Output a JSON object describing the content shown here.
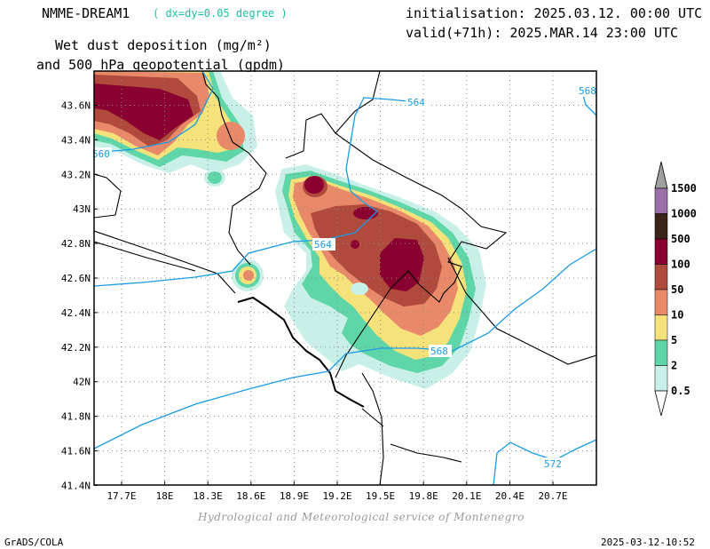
{
  "header": {
    "model": "NMME-DREAM1",
    "resolution": "( dx=dy=0.05 degree )",
    "init": "initialisation: 2025.03.12. 00:00 UTC",
    "valid": "valid(+71h): 2025.MAR.14 23:00 UTC",
    "title_line1": "Wet dust deposition (mg/m²)",
    "title_line2": "and 500 hPa geopotential (gpdm)"
  },
  "axes": {
    "x_ticks": [
      "17.7E",
      "18E",
      "18.3E",
      "18.6E",
      "18.9E",
      "19.2E",
      "19.5E",
      "19.8E",
      "20.1E",
      "20.4E",
      "20.7E"
    ],
    "y_ticks": [
      "43.6N",
      "43.4N",
      "43.2N",
      "43N",
      "42.8N",
      "42.6N",
      "42.4N",
      "42.2N",
      "42N",
      "41.8N",
      "41.6N",
      "41.4N"
    ]
  },
  "contours": {
    "labels": [
      "564",
      "568",
      "560",
      "564",
      "568",
      "572"
    ],
    "color": "#1a9be6"
  },
  "colorbar": {
    "levels": [
      "1500",
      "1000",
      "500",
      "100",
      "50",
      "10",
      "5",
      "2",
      "0.5"
    ],
    "colors": [
      "#a0a0a0",
      "#9b70a8",
      "#3b2418",
      "#8a0030",
      "#b04a3c",
      "#e8896a",
      "#f5e27a",
      "#5fd6a8",
      "#c9f0e8"
    ]
  },
  "footer": {
    "credit": "Hydrological and Meteorological service of Montenegro",
    "software": "GrADS/COLA",
    "timestamp": "2025-03-12-10:52"
  }
}
